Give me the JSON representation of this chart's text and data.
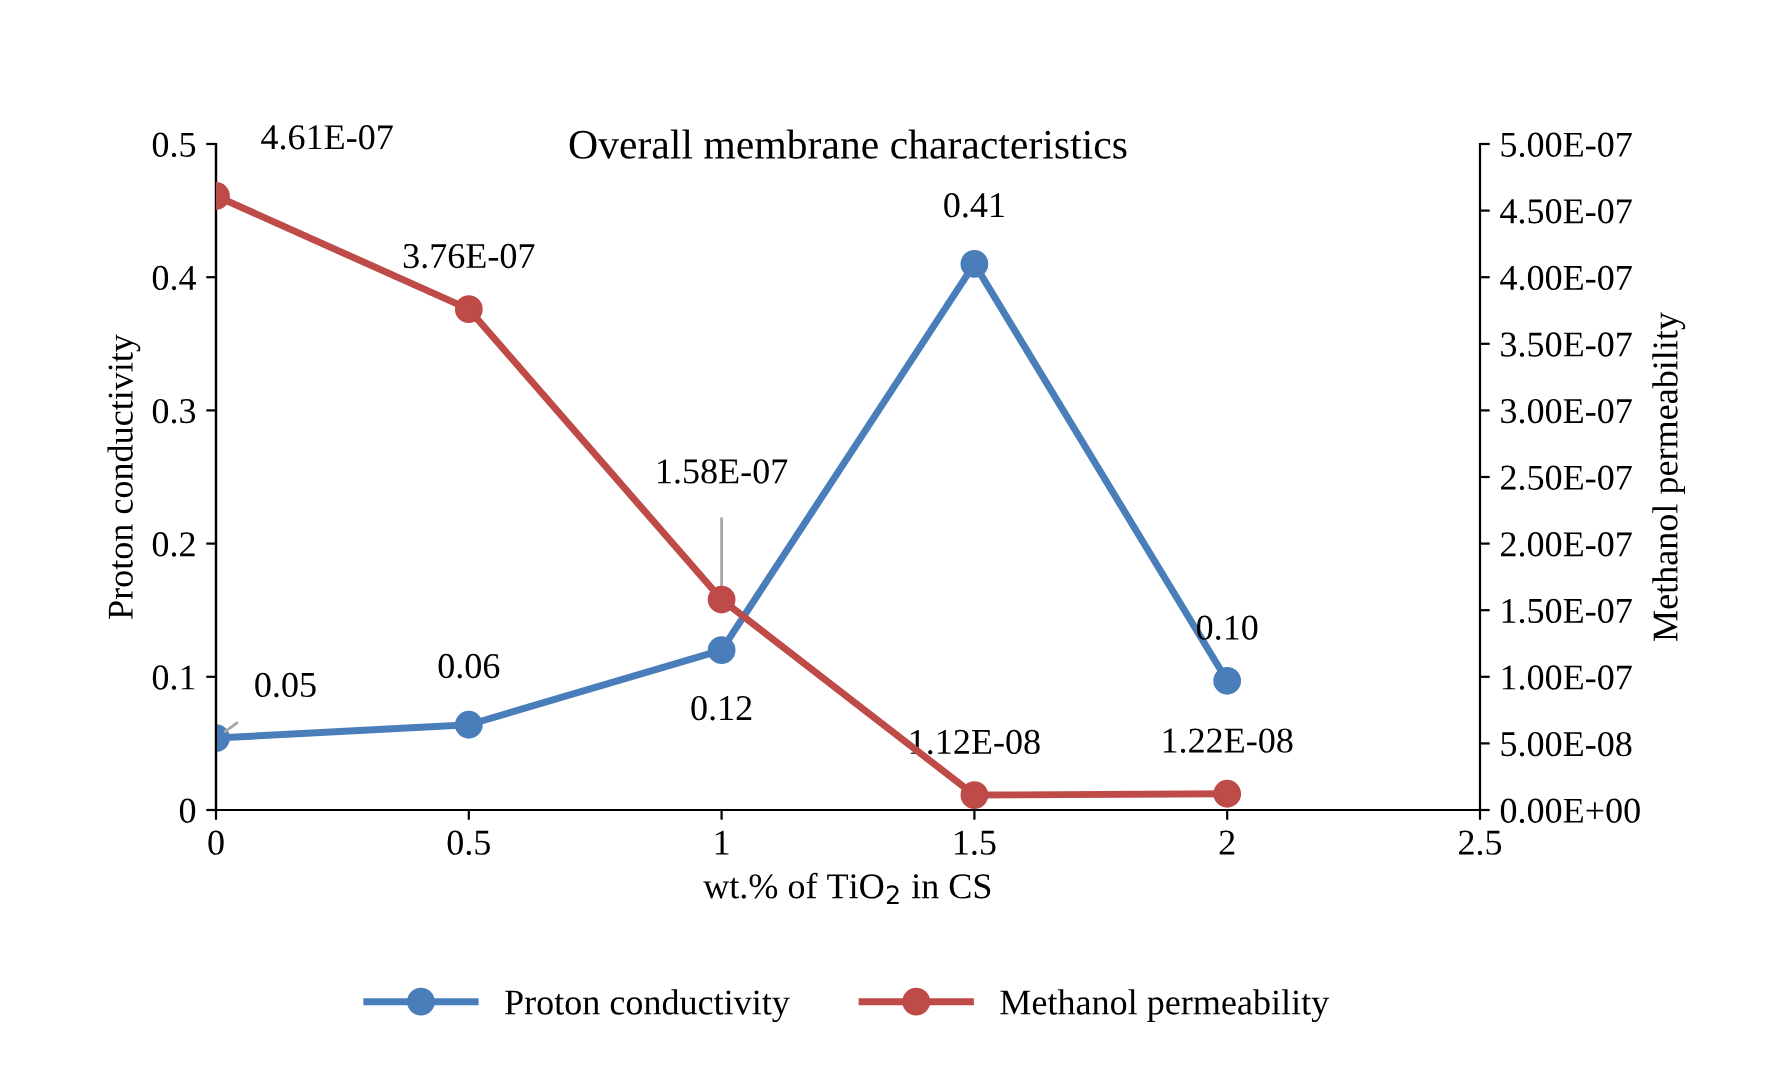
{
  "chart_data": {
    "type": "line",
    "title": "Overall membrane characteristics",
    "xlabel": "wt.% of TiO$_{2}$ in CS",
    "ylabel": "Proton conductivity",
    "y2label": "Methanol permeability",
    "x": [
      0,
      0.5,
      1,
      1.5,
      2
    ],
    "series": [
      {
        "name": "Proton conductivity",
        "color": "#4a7ebb",
        "values": [
          0.054,
          0.064,
          0.12,
          0.41,
          0.097
        ],
        "value_labels": [
          "0.05",
          "0.06",
          "0.12",
          "0.41",
          "0.10"
        ]
      },
      {
        "name": "Methanol permeability",
        "color": "#be4b48",
        "axis": "y2",
        "values": [
          4.61e-07,
          3.76e-07,
          1.58e-07,
          1.12e-08,
          1.22e-08
        ],
        "value_labels": [
          "4.61E-07",
          "3.76E-07",
          "1.58E-07",
          "1.12E-08",
          "1.22E-08"
        ]
      }
    ],
    "xlim": [
      0,
      2.5
    ],
    "xticks": [
      0,
      0.5,
      1,
      1.5,
      2,
      2.5
    ],
    "ylim": [
      0,
      0.5
    ],
    "yticks": [
      0,
      0.1,
      0.2,
      0.3,
      0.4,
      0.5
    ],
    "y2lim": [
      0,
      5e-07
    ],
    "y2ticks": [
      {
        "value": 0,
        "label": "0.00E+00"
      },
      {
        "value": 5e-08,
        "label": "5.00E-08"
      },
      {
        "value": 1e-07,
        "label": "1.00E-07"
      },
      {
        "value": 1.5e-07,
        "label": "1.50E-07"
      },
      {
        "value": 2e-07,
        "label": "2.00E-07"
      },
      {
        "value": 2.5e-07,
        "label": "2.50E-07"
      },
      {
        "value": 3e-07,
        "label": "3.00E-07"
      },
      {
        "value": 3.5e-07,
        "label": "3.50E-07"
      },
      {
        "value": 4e-07,
        "label": "4.00E-07"
      },
      {
        "value": 4.5e-07,
        "label": "4.50E-07"
      },
      {
        "value": 5e-07,
        "label": "5.00E-07"
      }
    ],
    "marker": "circle",
    "line_style": "solid",
    "grid": false,
    "legend": "bottom"
  }
}
